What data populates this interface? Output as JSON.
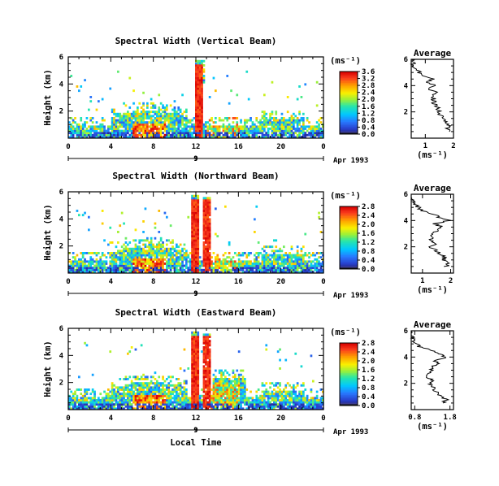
{
  "date_label": "Apr 1993",
  "xlabel_bottom": "Local Time",
  "chart_data": [
    {
      "type": "heatmap",
      "title": "Spectral Width (Vertical Beam)",
      "ylabel": "Height (km)",
      "units": "(ms⁻¹)",
      "date_label": "Apr 1993",
      "xlim": [
        0,
        24
      ],
      "x_ticks": [
        "0",
        "4",
        "8",
        "12",
        "16",
        "20",
        "0"
      ],
      "day_label": "9",
      "ylim": [
        0,
        6
      ],
      "y_ticks": [
        "2",
        "4",
        "6"
      ],
      "colorbar": {
        "range": [
          0.0,
          3.6
        ],
        "ticks": [
          "0.0",
          "0.4",
          "0.8",
          "1.2",
          "1.6",
          "2.0",
          "2.4",
          "2.8",
          "3.2",
          "3.6"
        ]
      },
      "average": {
        "title": "Average",
        "xlabel": "(ms⁻¹)",
        "xlim": [
          0.5,
          2.0
        ],
        "x_ticks": [
          "1",
          "2"
        ],
        "ylim": [
          0,
          6
        ],
        "y_ticks": [
          "2",
          "4",
          "6"
        ],
        "profile": [
          [
            0.5,
            1.9
          ],
          [
            0.75,
            1.8
          ],
          [
            1.0,
            1.85
          ],
          [
            1.25,
            1.7
          ],
          [
            1.5,
            1.6
          ],
          [
            1.75,
            1.55
          ],
          [
            2.0,
            1.5
          ],
          [
            2.25,
            1.45
          ],
          [
            2.5,
            1.35
          ],
          [
            2.75,
            1.3
          ],
          [
            3.0,
            1.3
          ],
          [
            3.25,
            1.2
          ],
          [
            3.5,
            1.4
          ],
          [
            3.75,
            1.15
          ],
          [
            4.0,
            1.35
          ],
          [
            4.25,
            1.1
          ],
          [
            4.5,
            1.25
          ],
          [
            4.75,
            0.9
          ],
          [
            5.0,
            0.8
          ],
          [
            5.25,
            0.7
          ],
          [
            5.5,
            0.6
          ],
          [
            5.75,
            0.55
          ],
          [
            6.0,
            0.5
          ]
        ]
      }
    },
    {
      "type": "heatmap",
      "title": "Spectral Width (Northward Beam)",
      "ylabel": "Height (km)",
      "units": "(ms⁻¹)",
      "date_label": "Apr 1993",
      "xlim": [
        0,
        24
      ],
      "x_ticks": [
        "0",
        "4",
        "8",
        "12",
        "16",
        "20",
        "0"
      ],
      "day_label": "9",
      "ylim": [
        0,
        6
      ],
      "y_ticks": [
        "2",
        "4",
        "6"
      ],
      "colorbar": {
        "range": [
          0.0,
          2.8
        ],
        "ticks": [
          "0.0",
          "0.4",
          "0.8",
          "1.2",
          "1.6",
          "2.0",
          "2.4",
          "2.8"
        ]
      },
      "average": {
        "title": "Average",
        "xlabel": "(ms⁻¹)",
        "xlim": [
          0.6,
          2.1
        ],
        "x_ticks": [
          "1",
          "2"
        ],
        "ylim": [
          0,
          6
        ],
        "y_ticks": [
          "2",
          "4",
          "6"
        ],
        "profile": [
          [
            0.5,
            1.85
          ],
          [
            0.75,
            1.9
          ],
          [
            1.0,
            1.75
          ],
          [
            1.25,
            1.8
          ],
          [
            1.5,
            1.6
          ],
          [
            1.75,
            1.45
          ],
          [
            2.0,
            1.3
          ],
          [
            2.25,
            1.5
          ],
          [
            2.5,
            1.25
          ],
          [
            2.75,
            1.35
          ],
          [
            3.0,
            1.3
          ],
          [
            3.25,
            1.55
          ],
          [
            3.5,
            1.7
          ],
          [
            3.75,
            1.45
          ],
          [
            4.0,
            1.95
          ],
          [
            4.25,
            1.6
          ],
          [
            4.5,
            1.4
          ],
          [
            4.75,
            1.0
          ],
          [
            5.0,
            0.85
          ],
          [
            5.25,
            0.7
          ],
          [
            5.5,
            0.65
          ],
          [
            5.75,
            0.6
          ],
          [
            6.0,
            0.6
          ]
        ]
      }
    },
    {
      "type": "heatmap",
      "title": "Spectral Width (Eastward Beam)",
      "ylabel": "Height (km)",
      "units": "(ms⁻¹)",
      "date_label": "Apr 1993",
      "xlim": [
        0,
        24
      ],
      "x_ticks": [
        "0",
        "4",
        "8",
        "12",
        "16",
        "20",
        "0"
      ],
      "day_label": "9",
      "ylim": [
        0,
        6
      ],
      "y_ticks": [
        "2",
        "4",
        "6"
      ],
      "colorbar": {
        "range": [
          0.0,
          2.8
        ],
        "ticks": [
          "0.0",
          "0.4",
          "0.8",
          "1.2",
          "1.6",
          "2.0",
          "2.4",
          "2.8"
        ]
      },
      "average": {
        "title": "Average",
        "xlabel": "(ms⁻¹)",
        "xlim": [
          0.7,
          1.9
        ],
        "x_ticks": [
          "0.8",
          "1.8"
        ],
        "ylim": [
          0,
          6
        ],
        "y_ticks": [
          "2",
          "4",
          "6"
        ],
        "profile": [
          [
            0.5,
            1.6
          ],
          [
            0.75,
            1.7
          ],
          [
            1.0,
            1.5
          ],
          [
            1.25,
            1.45
          ],
          [
            1.5,
            1.35
          ],
          [
            1.75,
            1.3
          ],
          [
            2.0,
            1.25
          ],
          [
            2.25,
            1.3
          ],
          [
            2.5,
            1.15
          ],
          [
            2.75,
            1.2
          ],
          [
            3.0,
            1.25
          ],
          [
            3.25,
            1.3
          ],
          [
            3.5,
            1.5
          ],
          [
            3.75,
            1.35
          ],
          [
            4.0,
            1.7
          ],
          [
            4.25,
            1.45
          ],
          [
            4.5,
            1.3
          ],
          [
            4.75,
            0.95
          ],
          [
            5.0,
            0.85
          ],
          [
            5.25,
            0.75
          ],
          [
            5.5,
            0.72
          ],
          [
            5.75,
            0.72
          ],
          [
            6.0,
            0.72
          ]
        ]
      }
    }
  ]
}
